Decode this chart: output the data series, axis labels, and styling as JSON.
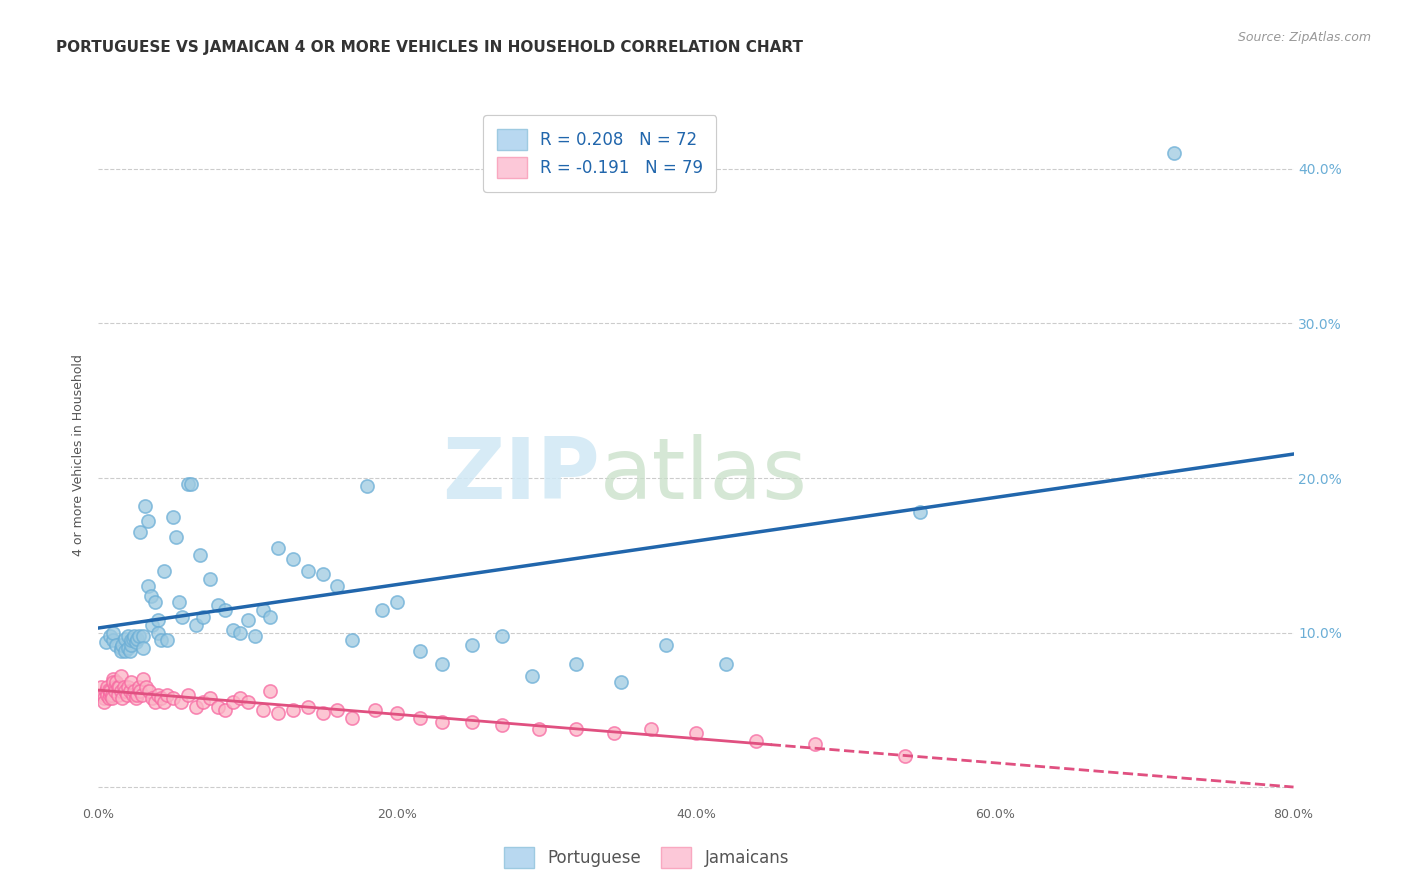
{
  "title": "PORTUGUESE VS JAMAICAN 4 OR MORE VEHICLES IN HOUSEHOLD CORRELATION CHART",
  "source": "Source: ZipAtlas.com",
  "ylabel": "4 or more Vehicles in Household",
  "watermark_zip": "ZIP",
  "watermark_atlas": "atlas",
  "xlim": [
    0.0,
    0.8
  ],
  "ylim": [
    -0.01,
    0.44
  ],
  "xticks": [
    0.0,
    0.2,
    0.4,
    0.6,
    0.8
  ],
  "yticks": [
    0.0,
    0.1,
    0.2,
    0.3,
    0.4
  ],
  "xtick_labels": [
    "0.0%",
    "20.0%",
    "40.0%",
    "60.0%",
    "80.0%"
  ],
  "right_ytick_labels": [
    "",
    "10.0%",
    "20.0%",
    "30.0%",
    "40.0%"
  ],
  "legend_R_blue": "R = 0.208",
  "legend_N_blue": "N = 72",
  "legend_R_pink": "R = -0.191",
  "legend_N_pink": "N = 79",
  "legend_label_blue": "Portuguese",
  "legend_label_pink": "Jamaicans",
  "blue_color": "#9ecae1",
  "pink_color": "#fbb4c5",
  "blue_edge_color": "#6baed6",
  "pink_edge_color": "#f768a1",
  "blue_line_color": "#2166ac",
  "pink_line_color": "#e05080",
  "title_fontsize": 11,
  "source_fontsize": 9,
  "axis_fontsize": 9,
  "legend_fontsize": 11,
  "portuguese_x": [
    0.005,
    0.008,
    0.01,
    0.01,
    0.012,
    0.015,
    0.015,
    0.016,
    0.018,
    0.018,
    0.02,
    0.02,
    0.021,
    0.022,
    0.022,
    0.023,
    0.024,
    0.025,
    0.026,
    0.027,
    0.028,
    0.03,
    0.03,
    0.031,
    0.033,
    0.033,
    0.035,
    0.036,
    0.038,
    0.04,
    0.04,
    0.042,
    0.044,
    0.046,
    0.05,
    0.052,
    0.054,
    0.056,
    0.06,
    0.062,
    0.065,
    0.068,
    0.07,
    0.075,
    0.08,
    0.085,
    0.09,
    0.095,
    0.1,
    0.105,
    0.11,
    0.115,
    0.12,
    0.13,
    0.14,
    0.15,
    0.16,
    0.17,
    0.18,
    0.19,
    0.2,
    0.215,
    0.23,
    0.25,
    0.27,
    0.29,
    0.32,
    0.35,
    0.38,
    0.42,
    0.55,
    0.72
  ],
  "portuguese_y": [
    0.094,
    0.098,
    0.095,
    0.1,
    0.092,
    0.09,
    0.088,
    0.092,
    0.096,
    0.088,
    0.098,
    0.09,
    0.088,
    0.092,
    0.095,
    0.096,
    0.098,
    0.094,
    0.096,
    0.098,
    0.165,
    0.098,
    0.09,
    0.182,
    0.172,
    0.13,
    0.124,
    0.105,
    0.12,
    0.108,
    0.1,
    0.095,
    0.14,
    0.095,
    0.175,
    0.162,
    0.12,
    0.11,
    0.196,
    0.196,
    0.105,
    0.15,
    0.11,
    0.135,
    0.118,
    0.115,
    0.102,
    0.1,
    0.108,
    0.098,
    0.115,
    0.11,
    0.155,
    0.148,
    0.14,
    0.138,
    0.13,
    0.095,
    0.195,
    0.115,
    0.12,
    0.088,
    0.08,
    0.092,
    0.098,
    0.072,
    0.08,
    0.068,
    0.092,
    0.08,
    0.178,
    0.41
  ],
  "jamaican_x": [
    0.002,
    0.003,
    0.004,
    0.004,
    0.005,
    0.006,
    0.006,
    0.007,
    0.007,
    0.008,
    0.008,
    0.009,
    0.009,
    0.01,
    0.01,
    0.011,
    0.011,
    0.012,
    0.013,
    0.013,
    0.014,
    0.015,
    0.015,
    0.016,
    0.017,
    0.018,
    0.019,
    0.02,
    0.021,
    0.022,
    0.023,
    0.024,
    0.025,
    0.026,
    0.027,
    0.028,
    0.029,
    0.03,
    0.032,
    0.034,
    0.036,
    0.038,
    0.04,
    0.042,
    0.044,
    0.046,
    0.05,
    0.055,
    0.06,
    0.065,
    0.07,
    0.075,
    0.08,
    0.085,
    0.09,
    0.095,
    0.1,
    0.11,
    0.115,
    0.12,
    0.13,
    0.14,
    0.15,
    0.16,
    0.17,
    0.185,
    0.2,
    0.215,
    0.23,
    0.25,
    0.27,
    0.295,
    0.32,
    0.345,
    0.37,
    0.4,
    0.44,
    0.48,
    0.54
  ],
  "jamaican_y": [
    0.065,
    0.06,
    0.058,
    0.055,
    0.062,
    0.065,
    0.06,
    0.063,
    0.058,
    0.06,
    0.062,
    0.06,
    0.058,
    0.07,
    0.068,
    0.065,
    0.062,
    0.068,
    0.065,
    0.06,
    0.065,
    0.062,
    0.072,
    0.058,
    0.065,
    0.062,
    0.06,
    0.065,
    0.062,
    0.068,
    0.06,
    0.062,
    0.058,
    0.06,
    0.065,
    0.062,
    0.06,
    0.07,
    0.065,
    0.062,
    0.058,
    0.055,
    0.06,
    0.058,
    0.055,
    0.06,
    0.058,
    0.055,
    0.06,
    0.052,
    0.055,
    0.058,
    0.052,
    0.05,
    0.055,
    0.058,
    0.055,
    0.05,
    0.062,
    0.048,
    0.05,
    0.052,
    0.048,
    0.05,
    0.045,
    0.05,
    0.048,
    0.045,
    0.042,
    0.042,
    0.04,
    0.038,
    0.038,
    0.035,
    0.038,
    0.035,
    0.03,
    0.028,
    0.02
  ],
  "grid_color": "#cccccc",
  "background_color": "#ffffff"
}
